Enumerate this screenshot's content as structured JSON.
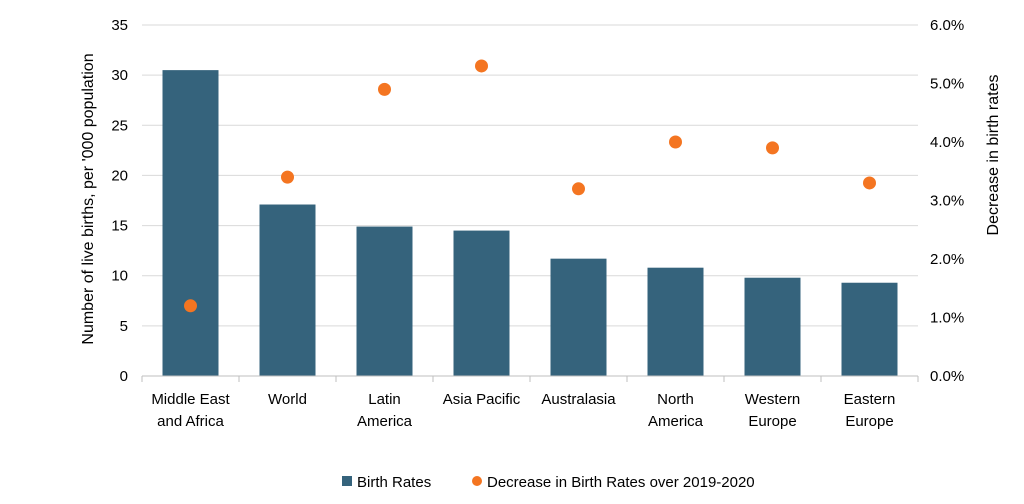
{
  "chart_data": {
    "type": "bar",
    "categories": [
      [
        "Middle East",
        "and Africa"
      ],
      [
        "World"
      ],
      [
        "Latin",
        "America"
      ],
      [
        "Asia Pacific"
      ],
      [
        "Australasia"
      ],
      [
        "North",
        "America"
      ],
      [
        "Western",
        "Europe"
      ],
      [
        "Eastern",
        "Europe"
      ]
    ],
    "series": [
      {
        "name": "Birth Rates",
        "type": "bar",
        "axis": "left",
        "color": "#35637c",
        "values": [
          30.5,
          17.1,
          14.9,
          14.5,
          11.7,
          10.8,
          9.8,
          9.3
        ]
      },
      {
        "name": "Decrease in Birth Rates over 2019-2020",
        "type": "scatter",
        "axis": "right",
        "color": "#f47521",
        "values": [
          1.2,
          3.4,
          4.9,
          5.3,
          3.2,
          4.0,
          3.9,
          3.3
        ]
      }
    ],
    "ylabel": "Number of live births, per '000 population",
    "y2label": "Decrease in birth rates",
    "ylim": [
      0,
      35
    ],
    "y2lim": [
      0,
      6
    ],
    "yticks": [
      "0",
      "5",
      "10",
      "15",
      "20",
      "25",
      "30",
      "35"
    ],
    "y2ticks": [
      "0.0%",
      "1.0%",
      "2.0%",
      "3.0%",
      "4.0%",
      "5.0%",
      "6.0%"
    ],
    "grid": true,
    "legend": "bottom"
  }
}
